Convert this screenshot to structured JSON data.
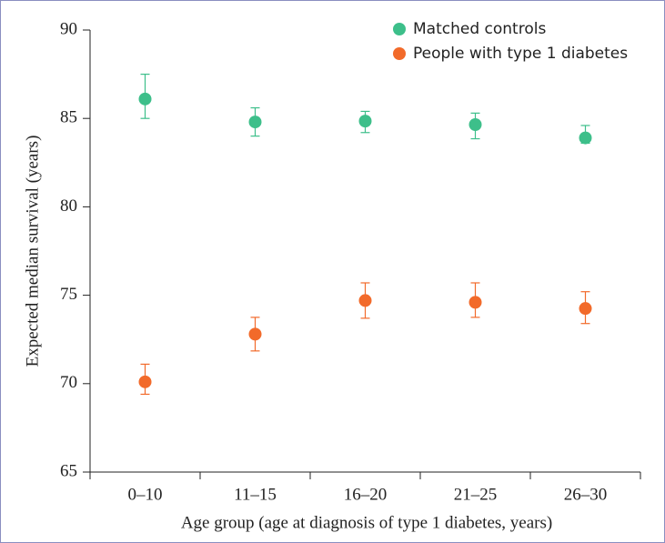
{
  "chart_data": {
    "type": "scatter",
    "x_label": "Age group (age at diagnosis of type 1 diabetes, years)",
    "y_label": "Expected median survival (years)",
    "categories": [
      "0–10",
      "11–15",
      "16–20",
      "21–25",
      "26–30"
    ],
    "ylim": [
      65,
      90
    ],
    "yticks": [
      65,
      70,
      75,
      80,
      85,
      90
    ],
    "legend": "upper right",
    "series": [
      {
        "name": "Matched controls",
        "color": "#3dbf8a",
        "values": [
          86.1,
          84.8,
          84.85,
          84.65,
          83.9
        ],
        "lower": [
          85.0,
          84.0,
          84.2,
          83.85,
          83.6
        ],
        "upper": [
          87.5,
          85.6,
          85.4,
          85.3,
          84.6
        ]
      },
      {
        "name": "People with type 1 diabetes",
        "color": "#f26a2a",
        "values": [
          70.1,
          72.8,
          74.7,
          74.6,
          74.25
        ],
        "lower": [
          69.4,
          71.85,
          73.7,
          73.75,
          73.4
        ],
        "upper": [
          71.1,
          73.75,
          75.7,
          75.7,
          75.2
        ]
      }
    ]
  }
}
